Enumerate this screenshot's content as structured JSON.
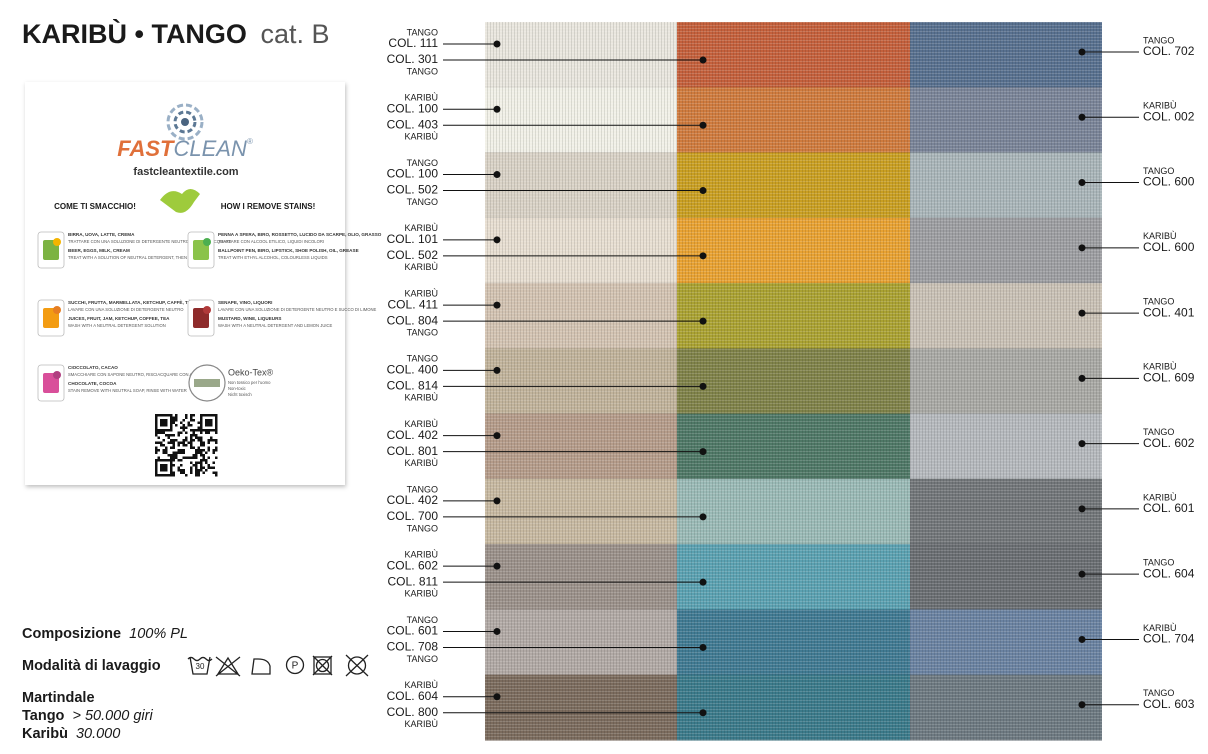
{
  "header": {
    "title": "KARIBÙ • TANGO",
    "category": "cat. B"
  },
  "card": {
    "logo": [
      "FAST",
      "CLEAN",
      "®"
    ],
    "website": "fastcleantextile.com",
    "heading_it": "COME TI SMACCHIO!",
    "heading_en": "HOW I REMOVE STAINS!",
    "items": [
      {
        "title_it": "BIRRA, UOVA, LATTE, CREMA",
        "text_it": "TRATTARE CON UNA SOLUZIONE DI DETERGENTE NEUTRO, POI RISCIACQUARE",
        "title_en": "BEER, EGGS, MILK, CREAM",
        "text_en": "TREAT WITH A SOLUTION OF NEUTRAL DETERGENT, THEN RINSE"
      },
      {
        "title_it": "PENNA A SFERA, BIRO, ROSSETTO, LUCIDO DA SCARPE, OLIO, GRASSO",
        "text_it": "TRATTARE CON ALCOOL ETILICO, LIQUIDI INCOLORI",
        "title_en": "BALLPOINT PEN, BIRO, LIPSTICK, SHOE POLISH, OIL, GREASE",
        "text_en": "TREAT WITH ETHYL ALCOHOL, COLOURLESS LIQUIDS"
      },
      {
        "title_it": "SUCCHI, FRUTTA, MARMELLATA, KETCHUP, CAFFÈ, TÈ",
        "text_it": "LAVARE CON UNA SOLUZIONE DI DETERGENTE NEUTRO",
        "title_en": "JUICES, FRUIT, JAM, KETCHUP, COFFEE, TEA",
        "text_en": "WASH WITH A NEUTRAL DETERGENT SOLUTION"
      },
      {
        "title_it": "SENAPE, VINO, LIQUORI",
        "text_it": "LAVARE CON UNA SOLUZIONE DI DETERGENTE NEUTRO E SUCCO DI LIMONE",
        "title_en": "MUSTARD, WINE, LIQUEURS",
        "text_en": "WASH WITH A NEUTRAL DETERGENT AND LEMON JUICE"
      },
      {
        "title_it": "CIOCCOLATO, CACAO",
        "text_it": "SMACCHIARE CON SAPONE NEUTRO, RISCIACQUARE CON ACQUA",
        "title_en": "CHOCOLATE, COCOA",
        "text_en": "STAIN REMOVE WITH NEUTRAL SOAP, RINSE WITH WATER"
      }
    ],
    "oeko": {
      "name": "Oeko-Tex®",
      "lines": [
        "Non tossico per l'uomo",
        "Non-toxic",
        "Nicht toxisch"
      ]
    }
  },
  "specs": {
    "composition_label": "Composizione",
    "composition_value": "100% PL",
    "washing_label": "Modalità di lavaggio",
    "wash_temp": "30",
    "dry_clean": "P",
    "martindale_label": "Martindale",
    "tango_label": "Tango",
    "tango_value": "> 50.000 giri",
    "karibu_label": "Karibù",
    "karibu_value": "30.000"
  },
  "swatches": [
    {
      "left": {
        "line": "TANGO",
        "code": "COL. 111",
        "color": "#e9e6de"
      },
      "middle": {
        "line": "TANGO",
        "code": "COL. 301",
        "color": "#c4603c"
      },
      "right": {
        "line": "TANGO",
        "code": "COL. 702",
        "color": "#58708f"
      }
    },
    {
      "left": {
        "line": "KARIBÙ",
        "code": "COL. 100",
        "color": "#f1f0e7"
      },
      "middle": {
        "line": "KARIBÙ",
        "code": "COL. 403",
        "color": "#cf7b3e"
      },
      "right": {
        "line": "KARIBÙ",
        "code": "COL. 002",
        "color": "#7a8498"
      }
    },
    {
      "left": {
        "line": "TANGO",
        "code": "COL. 100",
        "color": "#d9d2c6"
      },
      "middle": {
        "line": "TANGO",
        "code": "COL. 502",
        "color": "#c99f22"
      },
      "right": {
        "line": "TANGO",
        "code": "COL. 600",
        "color": "#a9b5b9"
      }
    },
    {
      "left": {
        "line": "KARIBÙ",
        "code": "COL. 101",
        "color": "#e7ded1"
      },
      "middle": {
        "line": "KARIBÙ",
        "code": "COL. 502",
        "color": "#e8a232"
      },
      "right": {
        "line": "KARIBÙ",
        "code": "COL. 600",
        "color": "#9d9ea2"
      }
    },
    {
      "left": {
        "line": "KARIBÙ",
        "code": "COL. 411",
        "color": "#d3c3b2"
      },
      "middle": {
        "line": "TANGO",
        "code": "COL. 804",
        "color": "#aaa232"
      },
      "right": {
        "line": "TANGO",
        "code": "COL. 401",
        "color": "#c9c1b5"
      }
    },
    {
      "left": {
        "line": "TANGO",
        "code": "COL. 400",
        "color": "#c1b39b"
      },
      "middle": {
        "line": "KARIBÙ",
        "code": "COL. 814",
        "color": "#7f8249"
      },
      "right": {
        "line": "KARIBÙ",
        "code": "COL. 609",
        "color": "#a9a9a5"
      }
    },
    {
      "left": {
        "line": "KARIBÙ",
        "code": "COL. 402",
        "color": "#b59c8a"
      },
      "middle": {
        "line": "KARIBÙ",
        "code": "COL. 801",
        "color": "#4f7866"
      },
      "right": {
        "line": "TANGO",
        "code": "COL. 602",
        "color": "#b5b9bd"
      }
    },
    {
      "left": {
        "line": "TANGO",
        "code": "COL. 402",
        "color": "#c7b9a1"
      },
      "middle": {
        "line": "TANGO",
        "code": "COL. 700",
        "color": "#9abab6"
      },
      "right": {
        "line": "KARIBÙ",
        "code": "COL. 601",
        "color": "#727679"
      }
    },
    {
      "left": {
        "line": "KARIBÙ",
        "code": "COL. 602",
        "color": "#9b918a"
      },
      "middle": {
        "line": "KARIBÙ",
        "code": "COL. 811",
        "color": "#5ba1b1"
      },
      "right": {
        "line": "TANGO",
        "code": "COL. 604",
        "color": "#6a6e72"
      }
    },
    {
      "left": {
        "line": "TANGO",
        "code": "COL. 601",
        "color": "#b1a9a5"
      },
      "middle": {
        "line": "TANGO",
        "code": "COL. 708",
        "color": "#407a92"
      },
      "right": {
        "line": "KARIBÙ",
        "code": "COL. 704",
        "color": "#6a82a1"
      }
    },
    {
      "left": {
        "line": "KARIBÙ",
        "code": "COL. 604",
        "color": "#7b6b5d"
      },
      "middle": {
        "line": "KARIBÙ",
        "code": "COL. 800",
        "color": "#3b7a8a"
      },
      "right": {
        "line": "TANGO",
        "code": "COL. 603",
        "color": "#6d7981"
      }
    }
  ]
}
